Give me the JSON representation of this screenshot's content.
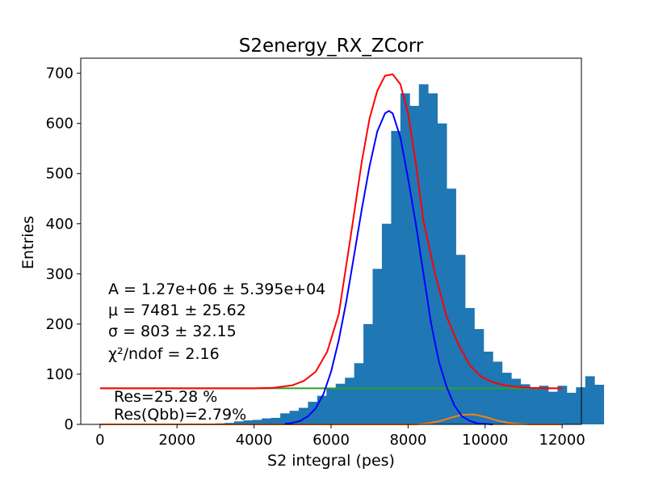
{
  "chart_data": {
    "type": "bar",
    "title": "S2energy_RX_ZCorr",
    "xlabel": "S2 integral (pes)",
    "ylabel": "Entries",
    "xlim": [
      -500,
      12500
    ],
    "ylim": [
      0,
      730
    ],
    "xticks": [
      "0",
      "2000",
      "4000",
      "6000",
      "8000",
      "10000",
      "12000"
    ],
    "yticks": [
      "0",
      "100",
      "200",
      "300",
      "400",
      "500",
      "600",
      "700"
    ],
    "grid": false,
    "histogram": {
      "color": "#1f77b4",
      "bin_width": 240,
      "x_start": 3000,
      "counts": [
        2,
        3,
        6,
        8,
        9,
        12,
        13,
        22,
        27,
        33,
        45,
        57,
        72,
        81,
        93,
        122,
        200,
        310,
        400,
        585,
        660,
        635,
        678,
        660,
        600,
        470,
        338,
        232,
        190,
        145,
        125,
        103,
        91,
        80,
        73,
        77,
        65,
        77,
        63,
        74,
        96,
        79
      ]
    },
    "fit_total": {
      "color": "#ff0000",
      "x": [
        0,
        4000,
        4500,
        5000,
        5300,
        5600,
        5900,
        6200,
        6500,
        6800,
        7000,
        7200,
        7400,
        7600,
        7800,
        8000,
        8200,
        8400,
        8700,
        9000,
        9300,
        9600,
        9900,
        10200,
        10500,
        10800,
        11200,
        11600,
        12000
      ],
      "y": [
        72,
        72,
        73,
        78,
        87,
        105,
        145,
        220,
        370,
        525,
        610,
        665,
        695,
        698,
        678,
        620,
        520,
        405,
        300,
        215,
        160,
        118,
        95,
        84,
        78,
        75,
        73,
        72,
        72
      ]
    },
    "fit_signal": {
      "color": "#0000ff",
      "x": [
        4800,
        5000,
        5200,
        5400,
        5600,
        5800,
        6000,
        6200,
        6400,
        6600,
        6800,
        7000,
        7200,
        7400,
        7500,
        7600,
        7800,
        8000,
        8200,
        8400,
        8600,
        8800,
        9000,
        9200,
        9400,
        9600,
        9800,
        10000,
        10200
      ],
      "y": [
        1,
        3,
        7,
        16,
        32,
        60,
        105,
        168,
        247,
        338,
        430,
        515,
        584,
        620,
        625,
        620,
        572,
        490,
        400,
        300,
        200,
        125,
        75,
        38,
        16,
        7,
        2,
        1,
        0
      ]
    },
    "fit_background": {
      "color": "#2ca02c",
      "x": [
        0,
        12000
      ],
      "y": [
        72,
        72
      ]
    },
    "fit_peak2": {
      "color": "#ff7f0e",
      "x": [
        0,
        8200,
        8500,
        8800,
        9100,
        9400,
        9700,
        10000,
        10300,
        10600,
        10900,
        11200,
        12000
      ],
      "y": [
        0,
        0,
        2,
        6,
        13,
        19,
        20,
        15,
        8,
        3,
        1,
        0,
        0
      ]
    },
    "fit_text": [
      "A = 1.27e+06 ± 5.395e+04",
      "μ = 7481 ± 25.62",
      "σ = 803 ± 32.15",
      "χ²/ndof = 2.16"
    ],
    "res_text": [
      "Res=25.28 %",
      "Res(Qbb)=2.79%"
    ]
  }
}
